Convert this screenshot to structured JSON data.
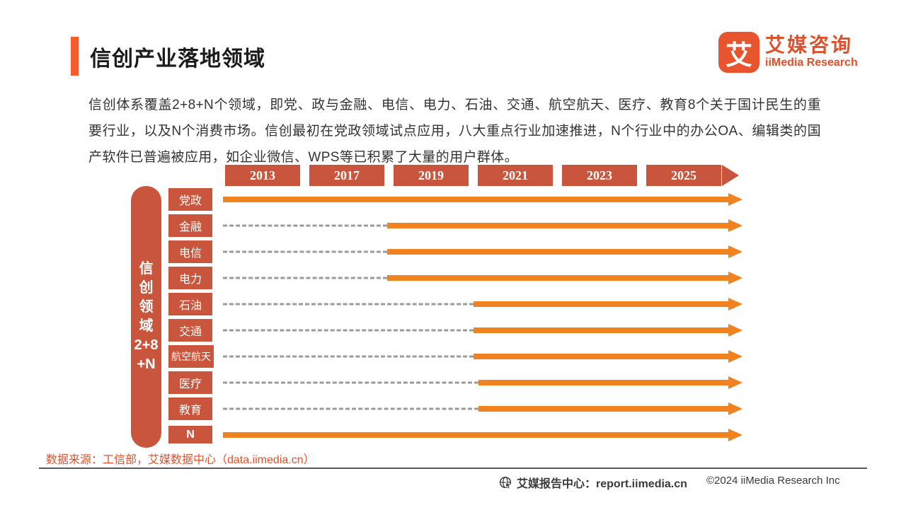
{
  "page": {
    "title": "信创产业落地领域",
    "description": "信创体系覆盖2+8+N个领域，即党、政与金融、电信、电力、石油、交通、航空航天、医疗、教育8个关于国计民生的重要行业，以及N个消费市场。信创最初在党政领域试点应用，八大重点行业加速推进，N个行业中的办公OA、编辑类的国产软件已普遍被应用，如企业微信、WPS等已积累了大量的用户群体。",
    "source_note": "数据来源：工信部，艾媒数据中心（data.iimedia.cn）"
  },
  "logo": {
    "glyph": "艾",
    "name_cn": "艾媒咨询",
    "name_en": "iiMedia Research"
  },
  "footer": {
    "report_center": "艾媒报告中心：report.iimedia.cn",
    "copyright": "©2024  iiMedia Research  Inc"
  },
  "chart_data": {
    "type": "bar",
    "subtype": "horizontal-gantt-timeline",
    "title": "信创产业落地领域",
    "axis_label": "信\n创\n领\n域\n2+8\n+N",
    "x_ticks": [
      "2013",
      "2017",
      "2019",
      "2021",
      "2023",
      "2025"
    ],
    "categories": [
      "党政",
      "金融",
      "电信",
      "电力",
      "石油",
      "交通",
      "航空航天",
      "医疗",
      "教育",
      "N"
    ],
    "rows": [
      {
        "label": "党政",
        "start_year": 2013,
        "solid_start_pct": 0
      },
      {
        "label": "金融",
        "start_year": 2019,
        "solid_start_pct": 32.5
      },
      {
        "label": "电信",
        "start_year": 2019,
        "solid_start_pct": 32.5
      },
      {
        "label": "电力",
        "start_year": 2019,
        "solid_start_pct": 32.5
      },
      {
        "label": "石油",
        "start_year": 2021,
        "solid_start_pct": 49.5
      },
      {
        "label": "交通",
        "start_year": 2021,
        "solid_start_pct": 49.5
      },
      {
        "label": "航空航天",
        "start_year": 2021,
        "solid_start_pct": 49.5
      },
      {
        "label": "医疗",
        "start_year": 2021,
        "solid_start_pct": 50.5
      },
      {
        "label": "教育",
        "start_year": 2021,
        "solid_start_pct": 50.5
      },
      {
        "label": "N",
        "start_year": 2013,
        "solid_start_pct": 0
      }
    ],
    "colors": {
      "category_box": "#C8553C",
      "year_box": "#C8553C",
      "solid_arrow": "#F0821F",
      "dashed_line": "#9B9B9B",
      "title_accent": "#F75B2D",
      "logo_orange": "#E8542E",
      "source_text": "#E2512C"
    },
    "legend_position": "none",
    "grid": false
  }
}
